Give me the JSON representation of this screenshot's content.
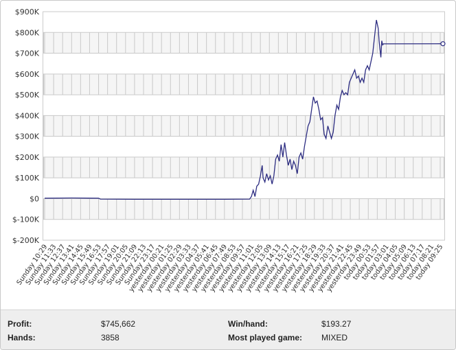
{
  "chart_data": {
    "type": "line",
    "title": "",
    "xlabel": "",
    "ylabel": "",
    "ylim": [
      -200000,
      900000
    ],
    "y_ticks": [
      900000,
      800000,
      700000,
      600000,
      500000,
      400000,
      300000,
      200000,
      100000,
      0,
      -100000,
      -200000
    ],
    "y_tick_labels": [
      "$900K",
      "$800K",
      "$700K",
      "$600K",
      "$500K",
      "$400K",
      "$300K",
      "$200K",
      "$100K",
      "$0",
      "$-100K",
      "$-200K"
    ],
    "x_tick_labels": [
      "Sunday 10:29",
      "Sunday 11:33",
      "Sunday 12:37",
      "Sunday 13:41",
      "Sunday 14:45",
      "Sunday 15:49",
      "Sunday 16:53",
      "Sunday 17:57",
      "Sunday 19:01",
      "Sunday 20:05",
      "Sunday 21:09",
      "Sunday 22:13",
      "Sunday 23:17",
      "yesterday 00:21",
      "yesterday 01:25",
      "yesterday 02:29",
      "yesterday 03:33",
      "yesterday 04:37",
      "yesterday 05:41",
      "yesterday 06:45",
      "yesterday 07:49",
      "yesterday 08:53",
      "yesterday 09:57",
      "yesterday 11:01",
      "yesterday 12:05",
      "yesterday 13:09",
      "yesterday 14:13",
      "yesterday 15:17",
      "yesterday 16:21",
      "yesterday 17:25",
      "yesterday 18:29",
      "yesterday 19:33",
      "yesterday 20:37",
      "yesterday 21:41",
      "yesterday 22:45",
      "yesterday 23:49",
      "today 00:53",
      "today 01:57",
      "today 03:01",
      "today 04:05",
      "today 05:09",
      "today 06:13",
      "today 07:17",
      "today 08:21",
      "today 09:25"
    ],
    "grid": true,
    "legend": "none",
    "line_color": "#2b2b80",
    "series": [
      {
        "points": [
          [
            0,
            2000
          ],
          [
            3,
            3000
          ],
          [
            6,
            2000
          ],
          [
            6.2,
            -2000
          ],
          [
            10,
            -3000
          ],
          [
            15,
            -3000
          ],
          [
            20,
            -3000
          ],
          [
            22.8,
            -2000
          ],
          [
            23.0,
            10000
          ],
          [
            23.2,
            40000
          ],
          [
            23.4,
            10000
          ],
          [
            23.6,
            60000
          ],
          [
            23.8,
            70000
          ],
          [
            24.0,
            110000
          ],
          [
            24.2,
            160000
          ],
          [
            24.3,
            100000
          ],
          [
            24.5,
            80000
          ],
          [
            24.7,
            120000
          ],
          [
            24.9,
            90000
          ],
          [
            25.1,
            110000
          ],
          [
            25.3,
            70000
          ],
          [
            25.5,
            110000
          ],
          [
            25.7,
            190000
          ],
          [
            25.9,
            210000
          ],
          [
            26.1,
            180000
          ],
          [
            26.3,
            260000
          ],
          [
            26.5,
            200000
          ],
          [
            26.7,
            270000
          ],
          [
            26.9,
            210000
          ],
          [
            27.1,
            160000
          ],
          [
            27.3,
            190000
          ],
          [
            27.5,
            140000
          ],
          [
            27.7,
            180000
          ],
          [
            27.9,
            160000
          ],
          [
            28.1,
            120000
          ],
          [
            28.3,
            200000
          ],
          [
            28.5,
            220000
          ],
          [
            28.7,
            190000
          ],
          [
            28.9,
            250000
          ],
          [
            29.1,
            300000
          ],
          [
            29.3,
            350000
          ],
          [
            29.5,
            370000
          ],
          [
            29.7,
            430000
          ],
          [
            29.9,
            490000
          ],
          [
            30.1,
            460000
          ],
          [
            30.3,
            470000
          ],
          [
            30.5,
            430000
          ],
          [
            30.7,
            380000
          ],
          [
            30.9,
            390000
          ],
          [
            31.1,
            310000
          ],
          [
            31.3,
            290000
          ],
          [
            31.5,
            350000
          ],
          [
            31.7,
            320000
          ],
          [
            31.9,
            290000
          ],
          [
            32.1,
            320000
          ],
          [
            32.3,
            400000
          ],
          [
            32.5,
            450000
          ],
          [
            32.7,
            430000
          ],
          [
            32.9,
            490000
          ],
          [
            33.1,
            520000
          ],
          [
            33.3,
            500000
          ],
          [
            33.5,
            510000
          ],
          [
            33.7,
            500000
          ],
          [
            33.9,
            560000
          ],
          [
            34.1,
            580000
          ],
          [
            34.3,
            600000
          ],
          [
            34.5,
            620000
          ],
          [
            34.7,
            580000
          ],
          [
            34.9,
            590000
          ],
          [
            35.1,
            560000
          ],
          [
            35.3,
            580000
          ],
          [
            35.5,
            560000
          ],
          [
            35.7,
            620000
          ],
          [
            35.9,
            640000
          ],
          [
            36.1,
            620000
          ],
          [
            36.3,
            660000
          ],
          [
            36.5,
            700000
          ],
          [
            36.7,
            780000
          ],
          [
            36.9,
            860000
          ],
          [
            37.1,
            820000
          ],
          [
            37.2,
            760000
          ],
          [
            37.3,
            720000
          ],
          [
            37.4,
            680000
          ],
          [
            37.5,
            760000
          ],
          [
            37.6,
            740000
          ],
          [
            37.7,
            745000
          ],
          [
            44.3,
            745662
          ]
        ]
      }
    ]
  },
  "stats": {
    "profit_label": "Profit:",
    "profit_value": "$745,662",
    "hands_label": "Hands:",
    "hands_value": "3858",
    "winhand_label": "Win/hand:",
    "winhand_value": "$193.27",
    "game_label": "Most played game:",
    "game_value": "MIXED"
  }
}
